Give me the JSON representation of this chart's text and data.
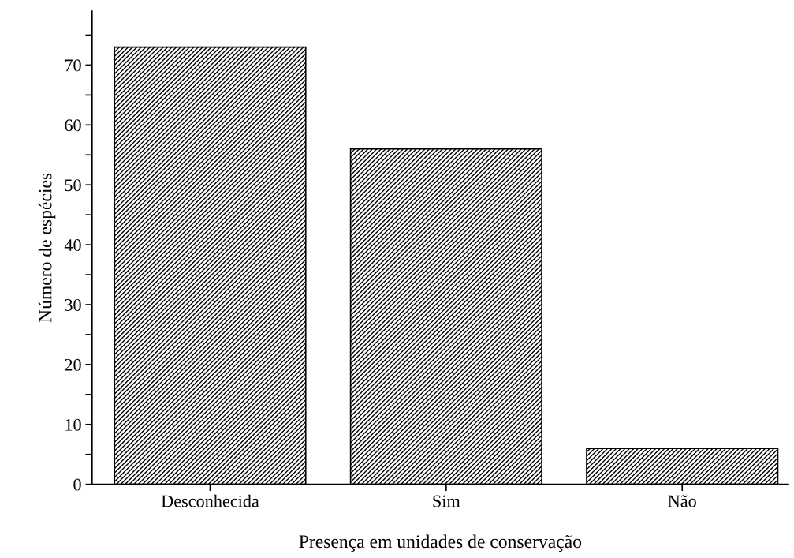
{
  "chart_data": {
    "type": "bar",
    "xlabel": "Presença em unidades de conservação",
    "ylabel": "Número de espécies",
    "categories": [
      "Desconhecida",
      "Sim",
      "Não"
    ],
    "values": [
      73,
      56,
      6
    ],
    "color": "#000000",
    "ylim": [
      0,
      79
    ],
    "yticks": [
      0,
      {
        "value": 5,
        "label": null
      },
      10,
      {
        "value": 15,
        "label": null
      },
      20,
      {
        "value": 25,
        "label": null
      },
      30,
      {
        "value": 35,
        "label": null
      },
      40,
      {
        "value": 45,
        "label": null
      },
      50,
      {
        "value": 55,
        "label": null
      },
      60,
      {
        "value": 65,
        "label": null
      },
      70,
      {
        "value": 75,
        "label": null
      }
    ],
    "grid": false
  }
}
